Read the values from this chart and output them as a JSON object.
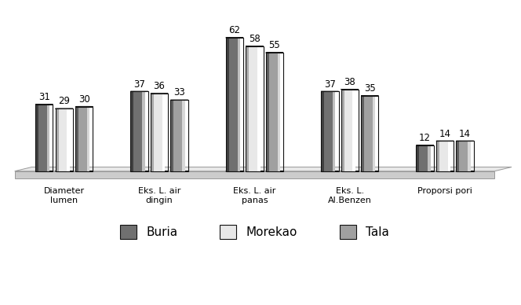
{
  "categories": [
    "Diameter\nlumen",
    "Eks. L. air\ndingin",
    "Eks. L. air\npanas",
    "Eks. L.\nAl.Benzen",
    "Proporsi pori"
  ],
  "series": {
    "Buria": [
      31,
      37,
      62,
      37,
      12
    ],
    "Morekao": [
      29,
      36,
      58,
      38,
      14
    ],
    "Tala": [
      30,
      33,
      55,
      35,
      14
    ]
  },
  "colors": {
    "Buria": {
      "face": "#707070",
      "highlight": "#c0c0c0",
      "shadow": "#404040",
      "top": "#909090"
    },
    "Morekao": {
      "face": "#e8e8e8",
      "highlight": "#ffffff",
      "shadow": "#aaaaaa",
      "top": "#d8d8d8"
    },
    "Tala": {
      "face": "#a0a0a0",
      "highlight": "#d8d8d8",
      "shadow": "#606060",
      "top": "#b8b8b8"
    }
  },
  "edge_color": "#111111",
  "bar_width": 0.21,
  "ylim_data": 65,
  "tick_fontsize": 8.0,
  "legend_fontsize": 11,
  "background_color": "#ffffff",
  "floor_color": "#cccccc",
  "floor_edge": "#999999",
  "value_fontsize": 8.5,
  "platform_color": "#d4d4d4",
  "platform_top_color": "#e8e8e8"
}
